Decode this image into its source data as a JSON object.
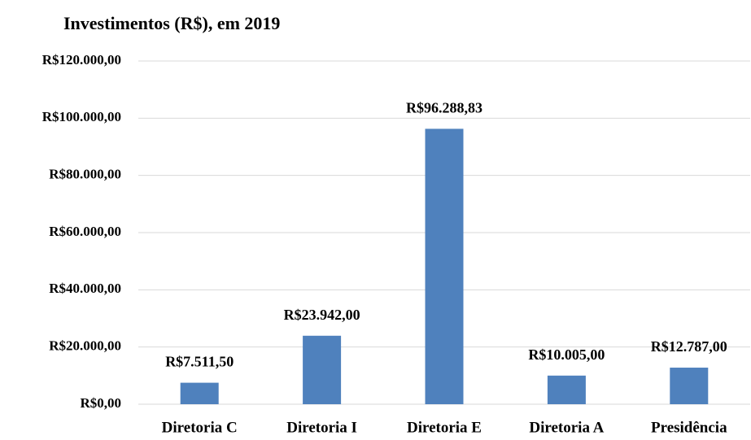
{
  "chart_data": {
    "type": "bar",
    "title": "Investimentos (R$), em 2019",
    "categories": [
      "Diretoria C",
      "Diretoria I",
      "Diretoria E",
      "Diretoria A",
      "Presidência"
    ],
    "values": [
      7511.5,
      23942,
      96288.83,
      10005,
      12787
    ],
    "value_labels": [
      "R$7.511,50",
      "R$23.942,00",
      "R$96.288,83",
      "R$10.005,00",
      "R$12.787,00"
    ],
    "color": "#4f81bd",
    "ylim": [
      0,
      120000
    ],
    "yticks": [
      {
        "value": 0,
        "label": "R$0,00"
      },
      {
        "value": 20000,
        "label": "R$20.000,00"
      },
      {
        "value": 40000,
        "label": "R$40.000,00"
      },
      {
        "value": 60000,
        "label": "R$60.000,00"
      },
      {
        "value": 80000,
        "label": "R$80.000,00"
      },
      {
        "value": 100000,
        "label": "R$100.000,00"
      },
      {
        "value": 120000,
        "label": "R$120.000,00"
      }
    ],
    "grid": true
  }
}
